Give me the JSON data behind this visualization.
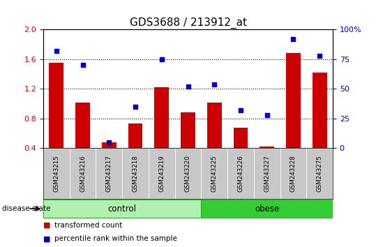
{
  "title": "GDS3688 / 213912_at",
  "samples": [
    "GSM243215",
    "GSM243216",
    "GSM243217",
    "GSM243218",
    "GSM243219",
    "GSM243220",
    "GSM243225",
    "GSM243226",
    "GSM243227",
    "GSM243228",
    "GSM243275"
  ],
  "transformed_count": [
    1.55,
    1.02,
    0.48,
    0.73,
    1.22,
    0.88,
    1.02,
    0.68,
    0.42,
    1.68,
    1.42
  ],
  "percentile_rank": [
    82,
    70,
    5,
    35,
    75,
    52,
    54,
    32,
    28,
    92,
    78
  ],
  "control_count": 6,
  "obese_count": 5,
  "ylim_left": [
    0.4,
    2.0
  ],
  "ylim_right": [
    0,
    100
  ],
  "yticks_left": [
    0.4,
    0.8,
    1.2,
    1.6,
    2.0
  ],
  "yticks_right": [
    0,
    25,
    50,
    75,
    100
  ],
  "bar_color": "#cc0000",
  "dot_color": "#0000cc",
  "control_color": "#b2f0b2",
  "obese_color": "#33cc33",
  "tick_area_color": "#c8c8c8",
  "legend_bar_label": "transformed count",
  "legend_dot_label": "percentile rank within the sample",
  "group_label": "disease state",
  "control_label": "control",
  "obese_label": "obese",
  "figsize": [
    5.39,
    3.54
  ],
  "dpi": 100
}
